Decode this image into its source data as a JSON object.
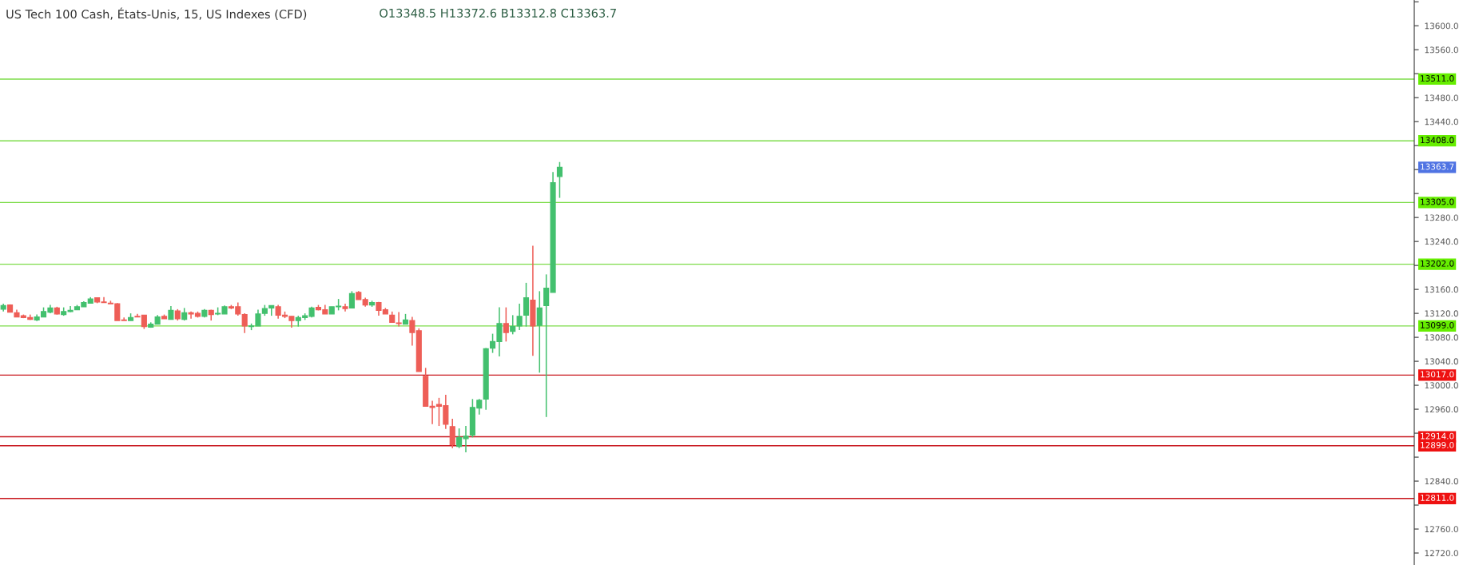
{
  "chart_data": {
    "type": "candlestick",
    "title": "US Tech 100 Cash, États-Unis, 15, US Indexes (CFD)",
    "annotations": [
      "O13348.5 H13372.6 B13312.8 C13363.7",
      "13363.7"
    ],
    "categories": [
      null,
      null,
      null,
      null,
      null,
      null,
      null,
      null,
      null,
      null,
      null,
      null,
      null,
      null,
      null,
      null,
      null,
      null,
      null,
      null,
      null,
      null,
      null,
      null,
      null,
      null,
      null,
      null,
      null,
      null,
      null,
      null,
      null,
      null,
      null,
      null,
      null,
      null,
      null,
      null,
      null,
      null,
      null,
      null,
      null,
      null,
      null,
      null,
      null,
      null,
      null,
      null,
      null,
      null,
      null,
      null,
      null,
      null,
      null,
      null,
      null,
      null,
      null,
      null,
      null,
      null,
      null,
      null,
      null,
      null,
      null,
      null,
      null,
      null,
      null,
      null,
      null,
      null,
      null,
      null,
      null,
      null,
      null,
      null,
      null,
      null,
      null,
      null,
      null,
      null,
      null,
      null,
      null,
      null,
      null,
      null,
      null,
      null,
      null,
      null,
      null,
      null,
      null,
      null,
      null,
      null,
      null,
      null,
      null,
      null,
      null,
      null,
      null,
      null,
      null,
      null,
      null,
      null,
      null,
      null,
      null,
      null,
      null,
      null,
      null,
      null,
      null,
      null,
      null,
      null,
      null,
      null,
      null,
      null,
      null,
      null,
      null,
      null,
      null,
      null,
      null,
      null,
      null,
      null,
      null,
      null,
      null,
      null,
      null,
      null,
      null,
      null,
      null,
      null,
      null,
      null,
      null,
      null,
      null,
      null,
      null,
      null,
      null,
      null,
      null,
      null,
      null,
      null,
      null,
      null,
      null,
      null,
      null,
      null,
      null,
      null,
      null,
      null,
      null,
      null,
      null,
      null,
      null,
      null,
      null,
      null,
      null,
      null,
      null,
      null,
      null,
      null,
      null,
      null,
      null,
      null,
      null,
      null,
      null,
      null,
      null,
      null,
      null,
      null,
      null,
      null,
      null,
      null,
      null,
      null,
      null
    ],
    "ohlc": [
      [
        13127,
        13136,
        13123,
        13133
      ],
      [
        13134,
        13135,
        13122,
        13122
      ],
      [
        13121,
        13126,
        13114,
        13114
      ],
      [
        13116,
        13118,
        13112,
        13113
      ],
      [
        13113,
        13118,
        13109,
        13110
      ],
      [
        13109,
        13118,
        13107,
        13114
      ],
      [
        13114,
        13130,
        13114,
        13123
      ],
      [
        13122,
        13134,
        13120,
        13129
      ],
      [
        13129,
        13131,
        13118,
        13119
      ],
      [
        13118,
        13130,
        13116,
        13123
      ],
      [
        13123,
        13132,
        13122,
        13125
      ],
      [
        13126,
        13134,
        13126,
        13131
      ],
      [
        13131,
        13140,
        13131,
        13138
      ],
      [
        13137,
        13147,
        13137,
        13144
      ],
      [
        13146,
        13146,
        13137,
        13139
      ],
      [
        13139,
        13147,
        13138,
        13138
      ],
      [
        13137,
        13141,
        13136,
        13136
      ],
      [
        13136,
        13137,
        13108,
        13108
      ],
      [
        13109,
        13113,
        13108,
        13108
      ],
      [
        13108,
        13120,
        13108,
        13113
      ],
      [
        13115,
        13119,
        13114,
        13114
      ],
      [
        13117,
        13117,
        13094,
        13098
      ],
      [
        13097,
        13105,
        13096,
        13102
      ],
      [
        13102,
        13117,
        13102,
        13114
      ],
      [
        13115,
        13118,
        13111,
        13111
      ],
      [
        13110,
        13132,
        13110,
        13125
      ],
      [
        13124,
        13127,
        13108,
        13111
      ],
      [
        13110,
        13129,
        13108,
        13121
      ],
      [
        13121,
        13123,
        13111,
        13119
      ],
      [
        13120,
        13123,
        13113,
        13115
      ],
      [
        13115,
        13127,
        13113,
        13125
      ],
      [
        13125,
        13126,
        13108,
        13118
      ],
      [
        13119,
        13130,
        13117,
        13120
      ],
      [
        13119,
        13133,
        13119,
        13131
      ],
      [
        13131,
        13134,
        13127,
        13129
      ],
      [
        13131,
        13138,
        13116,
        13119
      ],
      [
        13118,
        13120,
        13087,
        13099
      ],
      [
        13098,
        13103,
        13092,
        13099
      ],
      [
        13099,
        13126,
        13099,
        13119
      ],
      [
        13120,
        13134,
        13116,
        13128
      ],
      [
        13129,
        13133,
        13116,
        13133
      ],
      [
        13131,
        13134,
        13111,
        13117
      ],
      [
        13117,
        13123,
        13112,
        13115
      ],
      [
        13115,
        13115,
        13096,
        13108
      ],
      [
        13108,
        13116,
        13098,
        13113
      ],
      [
        13113,
        13120,
        13109,
        13116
      ],
      [
        13115,
        13131,
        13113,
        13129
      ],
      [
        13130,
        13134,
        13125,
        13126
      ],
      [
        13126,
        13134,
        13119,
        13119
      ],
      [
        13119,
        13131,
        13119,
        13131
      ],
      [
        13131,
        13144,
        13125,
        13132
      ],
      [
        13131,
        13136,
        13123,
        13128
      ],
      [
        13129,
        13157,
        13129,
        13153
      ],
      [
        13155,
        13157,
        13143,
        13143
      ],
      [
        13143,
        13146,
        13131,
        13134
      ],
      [
        13134,
        13141,
        13131,
        13138
      ],
      [
        13138,
        13139,
        13116,
        13125
      ],
      [
        13126,
        13129,
        13119,
        13119
      ],
      [
        13117,
        13123,
        13105,
        13105
      ],
      [
        13104,
        13122,
        13098,
        13103
      ],
      [
        13102,
        13119,
        13102,
        13109
      ],
      [
        13108,
        13114,
        13066,
        13088
      ],
      [
        13091,
        13095,
        13023,
        13023
      ],
      [
        13015,
        13029,
        12965,
        12965
      ],
      [
        12965,
        12974,
        12935,
        12963
      ],
      [
        12968,
        12979,
        12932,
        12965
      ],
      [
        12966,
        12984,
        12927,
        12935
      ],
      [
        12931,
        12944,
        12895,
        12901
      ],
      [
        12898,
        12928,
        12895,
        12913
      ],
      [
        12911,
        12932,
        12888,
        12915
      ],
      [
        12917,
        12977,
        12913,
        12963
      ],
      [
        12962,
        12977,
        12951,
        12975
      ],
      [
        12977,
        13062,
        12959,
        13061
      ],
      [
        13062,
        13086,
        13054,
        13073
      ],
      [
        13073,
        13130,
        13048,
        13103
      ],
      [
        13103,
        13130,
        13073,
        13088
      ],
      [
        13090,
        13117,
        13085,
        13098
      ],
      [
        13099,
        13136,
        13092,
        13115
      ],
      [
        13117,
        13171,
        13098,
        13146
      ],
      [
        13142,
        13233,
        13049,
        13099
      ],
      [
        13100,
        13157,
        13021,
        13129
      ],
      [
        13133,
        13185,
        12947,
        13162
      ],
      [
        13155,
        13356,
        13155,
        13338
      ],
      [
        13348.5,
        13372.6,
        13312.8,
        13363.7
      ],
      null,
      null,
      null,
      null,
      null,
      null,
      null,
      null,
      null,
      null,
      null,
      null,
      null,
      null,
      null,
      null,
      null,
      null,
      null,
      null,
      null,
      null,
      null,
      null,
      null,
      null,
      null,
      null,
      null,
      null,
      null,
      null,
      null,
      null,
      null,
      null,
      null,
      null,
      null,
      null,
      null,
      null,
      null,
      null,
      null,
      null,
      null,
      null,
      null,
      null,
      null,
      null,
      null,
      null,
      null,
      null,
      null,
      null,
      null,
      null,
      null,
      null,
      null,
      null,
      null,
      null,
      null,
      null,
      null,
      null,
      null,
      null,
      null,
      null,
      null,
      null,
      null,
      null,
      null,
      null,
      null,
      null,
      null,
      null,
      null,
      null,
      null,
      null,
      null,
      null,
      null,
      null,
      null,
      null,
      null,
      null,
      null,
      null,
      null,
      null,
      null,
      null,
      null,
      null,
      null,
      null,
      null,
      null,
      null,
      null,
      null,
      null,
      null,
      null,
      null,
      null,
      null,
      null,
      null,
      null,
      null,
      null,
      null,
      null,
      null,
      null,
      null
    ],
    "colors": [
      "#43c06e",
      "#ee5e57",
      "#ee5e57",
      "#ee5e57",
      "#ee5e57",
      "#43c06e",
      "#43c06e",
      "#43c06e",
      "#ee5e57",
      "#43c06e",
      "#43c06e",
      "#43c06e",
      "#43c06e",
      "#43c06e",
      "#ee5e57",
      "#ee5e57",
      "#ee5e57",
      "#ee5e57",
      "#ee5e57",
      "#43c06e",
      "#ee5e57",
      "#ee5e57",
      "#43c06e",
      "#43c06e",
      "#ee5e57",
      "#43c06e",
      "#ee5e57",
      "#43c06e",
      "#ee5e57",
      "#ee5e57",
      "#43c06e",
      "#ee5e57",
      "#43c06e",
      "#43c06e",
      "#ee5e57",
      "#ee5e57",
      "#ee5e57",
      "#43c06e",
      "#43c06e",
      "#43c06e",
      "#43c06e",
      "#ee5e57",
      "#ee5e57",
      "#ee5e57",
      "#43c06e",
      "#43c06e",
      "#43c06e",
      "#ee5e57",
      "#ee5e57",
      "#43c06e",
      "#43c06e",
      "#ee5e57",
      "#43c06e",
      "#ee5e57",
      "#ee5e57",
      "#43c06e",
      "#ee5e57",
      "#ee5e57",
      "#ee5e57",
      "#ee5e57",
      "#43c06e",
      "#ee5e57",
      "#ee5e57",
      "#ee5e57",
      "#ee5e57",
      "#ee5e57",
      "#ee5e57",
      "#ee5e57",
      "#43c06e",
      "#43c06e",
      "#43c06e",
      "#43c06e",
      "#43c06e",
      "#43c06e",
      "#43c06e",
      "#ee5e57",
      "#43c06e",
      "#43c06e",
      "#43c06e",
      "#ee5e57",
      "#43c06e",
      "#43c06e",
      "#43c06e",
      "#43c06e",
      null,
      null,
      null,
      null,
      null,
      null,
      null,
      null,
      null,
      null,
      null,
      null,
      null,
      null,
      null,
      null,
      null,
      null,
      null,
      null,
      null,
      null,
      null,
      null,
      null,
      null,
      null,
      null,
      null,
      null,
      null,
      null,
      null,
      null,
      null,
      null,
      null,
      null,
      null,
      null,
      null,
      null,
      null,
      null,
      null,
      null,
      null,
      null,
      null,
      null,
      null,
      null,
      null,
      null,
      null,
      null,
      null,
      null,
      null,
      null,
      null,
      null,
      null,
      null,
      null,
      null,
      null,
      null,
      null,
      null,
      null,
      null,
      null,
      null,
      null,
      null,
      null,
      null,
      null,
      null,
      null,
      null,
      null,
      null,
      null,
      null,
      null,
      null,
      null,
      null,
      null,
      null,
      null,
      null,
      null,
      null,
      null,
      null,
      null,
      null,
      null,
      null,
      null,
      null,
      null,
      null,
      null,
      null,
      null,
      null,
      null,
      null,
      null,
      null,
      null,
      null,
      null,
      null,
      null,
      null,
      null,
      null,
      null,
      null,
      null,
      null,
      null
    ],
    "ylim": [
      12700,
      13643
    ],
    "yticks": [
      {
        "value": 12720,
        "label": "12720.0"
      },
      {
        "value": 12760,
        "label": "12760.0"
      },
      {
        "value": 12800,
        "label": null
      },
      {
        "value": 12840,
        "label": "12840.0"
      },
      {
        "value": 12880,
        "label": null
      },
      {
        "value": 12920,
        "label": null
      },
      {
        "value": 12960,
        "label": "12960.0"
      },
      {
        "value": 13000,
        "label": "13000.0"
      },
      {
        "value": 13040,
        "label": "13040.0"
      },
      {
        "value": 13080,
        "label": "13080.0"
      },
      {
        "value": 13120,
        "label": "13120.0"
      },
      {
        "value": 13160,
        "label": "13160.0"
      },
      {
        "value": 13200,
        "label": null
      },
      {
        "value": 13240,
        "label": "13240.0"
      },
      {
        "value": 13280,
        "label": "13280.0"
      },
      {
        "value": 13320,
        "label": null
      },
      {
        "value": 13360,
        "label": null
      },
      {
        "value": 13400,
        "label": null
      },
      {
        "value": 13440,
        "label": "13440.0"
      },
      {
        "value": 13480,
        "label": "13480.0"
      },
      {
        "value": 13520,
        "label": null
      },
      {
        "value": 13560,
        "label": "13560.0"
      },
      {
        "value": 13600,
        "label": "13600.0"
      },
      {
        "value": 13640,
        "label": null
      }
    ],
    "ref_lines": [
      {
        "axis": "y",
        "value": 13511,
        "label": "13511.0",
        "color": "#7ddc4a"
      },
      {
        "axis": "y",
        "value": 13408,
        "label": "13408.0",
        "color": "#7ddc4a"
      },
      {
        "axis": "y",
        "value": 13305,
        "label": "13305.0",
        "color": "#7ddc4a"
      },
      {
        "axis": "y",
        "value": 13202,
        "label": "13202.0",
        "color": "#7ddc4a"
      },
      {
        "axis": "y",
        "value": 13099,
        "label": "13099.0",
        "color": "#7ddc4a"
      },
      {
        "axis": "y",
        "value": 13017,
        "label": "13017.0",
        "color": "#c8161d"
      },
      {
        "axis": "y",
        "value": 12914,
        "label": "12914.0",
        "color": "#c8161d"
      },
      {
        "axis": "y",
        "value": 12899,
        "label": "12899.0",
        "color": "#c8161d"
      },
      {
        "axis": "y",
        "value": 12811,
        "label": "12811.0",
        "color": "#c8161d"
      }
    ],
    "grid": false,
    "legend": false,
    "tick_labels": "y"
  }
}
